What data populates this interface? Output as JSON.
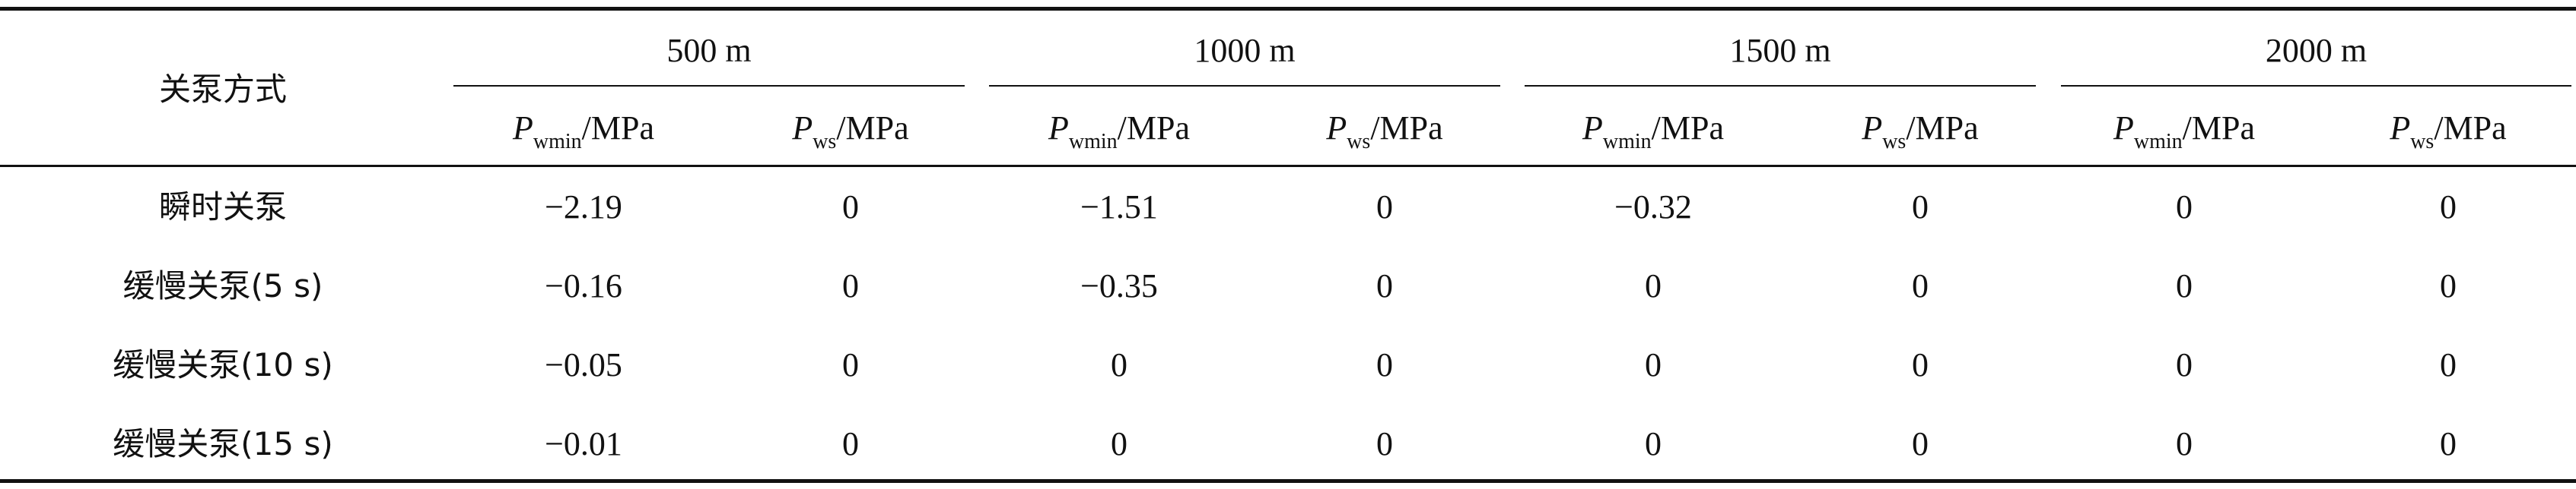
{
  "table": {
    "row_header": "关泵方式",
    "groups": [
      "500 m",
      "1000 m",
      "1500 m",
      "2000 m"
    ],
    "subheaders": [
      {
        "symbol": "P",
        "subscript": "wmin",
        "unit": "/MPa"
      },
      {
        "symbol": "P",
        "subscript": "ws",
        "unit": "/MPa"
      },
      {
        "symbol": "P",
        "subscript": "wmin",
        "unit": "/MPa"
      },
      {
        "symbol": "P",
        "subscript": "ws",
        "unit": "/MPa"
      },
      {
        "symbol": "P",
        "subscript": "wmin",
        "unit": "/MPa"
      },
      {
        "symbol": "P",
        "subscript": "ws",
        "unit": "/MPa"
      },
      {
        "symbol": "P",
        "subscript": "wmin",
        "unit": "/MPa"
      },
      {
        "symbol": "P",
        "subscript": "ws",
        "unit": "/MPa"
      }
    ],
    "rows": [
      [
        "瞬时关泵",
        "−2.19",
        "0",
        "−1.51",
        "0",
        "−0.32",
        "0",
        "0",
        "0"
      ],
      [
        "缓慢关泵(5 s)",
        "−0.16",
        "0",
        "−0.35",
        "0",
        "0",
        "0",
        "0",
        "0"
      ],
      [
        "缓慢关泵(10 s)",
        "−0.05",
        "0",
        "0",
        "0",
        "0",
        "0",
        "0",
        "0"
      ],
      [
        "缓慢关泵(15 s)",
        "−0.01",
        "0",
        "0",
        "0",
        "0",
        "0",
        "0",
        "0"
      ]
    ]
  }
}
